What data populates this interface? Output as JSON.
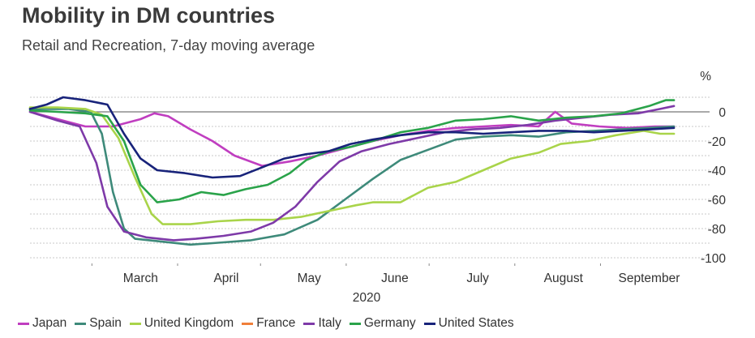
{
  "title": "Mobility in DM countries",
  "subtitle": "Retail and Recreation, 7-day moving average",
  "chart_data": {
    "type": "line",
    "title": "Mobility in DM countries",
    "subtitle": "Retail and Recreation, 7-day moving average",
    "ylabel": "%",
    "xlabel": "2020",
    "ylim": [
      -100,
      10
    ],
    "yticks": [
      0,
      -20,
      -40,
      -60,
      -80,
      -100
    ],
    "xlim": [
      0,
      240
    ],
    "months": [
      {
        "label": "March",
        "pos": 40
      },
      {
        "label": "April",
        "pos": 71
      },
      {
        "label": "May",
        "pos": 101
      },
      {
        "label": "June",
        "pos": 132
      },
      {
        "label": "July",
        "pos": 162
      },
      {
        "label": "August",
        "pos": 193
      },
      {
        "label": "September",
        "pos": 224
      }
    ],
    "year_label": "2020",
    "series": [
      {
        "name": "Japan",
        "color": "#c03ec0",
        "points": [
          [
            0,
            0
          ],
          [
            10,
            -5
          ],
          [
            20,
            -10
          ],
          [
            30,
            -10
          ],
          [
            40,
            -5
          ],
          [
            45,
            -1
          ],
          [
            50,
            -3
          ],
          [
            58,
            -12
          ],
          [
            66,
            -20
          ],
          [
            74,
            -30
          ],
          [
            84,
            -37
          ],
          [
            94,
            -34
          ],
          [
            104,
            -30
          ],
          [
            114,
            -25
          ],
          [
            124,
            -20
          ],
          [
            134,
            -16
          ],
          [
            144,
            -13
          ],
          [
            154,
            -11
          ],
          [
            164,
            -10
          ],
          [
            174,
            -9
          ],
          [
            184,
            -10
          ],
          [
            190,
            0
          ],
          [
            196,
            -8
          ],
          [
            206,
            -10
          ],
          [
            216,
            -11
          ],
          [
            226,
            -10
          ],
          [
            233,
            -10
          ]
        ]
      },
      {
        "name": "Spain",
        "color": "#3e8a7a",
        "points": [
          [
            0,
            2
          ],
          [
            14,
            2
          ],
          [
            22,
            0
          ],
          [
            26,
            -15
          ],
          [
            30,
            -55
          ],
          [
            34,
            -80
          ],
          [
            38,
            -87
          ],
          [
            48,
            -89
          ],
          [
            58,
            -91
          ],
          [
            66,
            -90
          ],
          [
            80,
            -88
          ],
          [
            92,
            -84
          ],
          [
            104,
            -74
          ],
          [
            114,
            -60
          ],
          [
            124,
            -46
          ],
          [
            134,
            -33
          ],
          [
            144,
            -26
          ],
          [
            154,
            -19
          ],
          [
            164,
            -17
          ],
          [
            174,
            -16
          ],
          [
            184,
            -17
          ],
          [
            194,
            -14
          ],
          [
            204,
            -13
          ],
          [
            214,
            -12
          ],
          [
            224,
            -11
          ],
          [
            233,
            -10
          ]
        ]
      },
      {
        "name": "United Kingdom",
        "color": "#a9d44a",
        "points": [
          [
            0,
            3
          ],
          [
            10,
            3
          ],
          [
            20,
            2
          ],
          [
            26,
            -2
          ],
          [
            32,
            -18
          ],
          [
            38,
            -45
          ],
          [
            44,
            -70
          ],
          [
            48,
            -77
          ],
          [
            58,
            -77
          ],
          [
            68,
            -75
          ],
          [
            78,
            -74
          ],
          [
            88,
            -74
          ],
          [
            98,
            -72
          ],
          [
            108,
            -68
          ],
          [
            118,
            -64
          ],
          [
            124,
            -62
          ],
          [
            134,
            -62
          ],
          [
            144,
            -52
          ],
          [
            154,
            -48
          ],
          [
            164,
            -40
          ],
          [
            174,
            -32
          ],
          [
            184,
            -28
          ],
          [
            192,
            -22
          ],
          [
            202,
            -20
          ],
          [
            212,
            -16
          ],
          [
            222,
            -13
          ],
          [
            228,
            -15
          ],
          [
            233,
            -15
          ]
        ]
      },
      {
        "name": "France",
        "color": "#f07f3a",
        "points": []
      },
      {
        "name": "Italy",
        "color": "#7e3aa8",
        "points": [
          [
            0,
            0
          ],
          [
            10,
            -6
          ],
          [
            18,
            -10
          ],
          [
            24,
            -35
          ],
          [
            28,
            -65
          ],
          [
            34,
            -82
          ],
          [
            42,
            -86
          ],
          [
            52,
            -88
          ],
          [
            60,
            -87
          ],
          [
            70,
            -85
          ],
          [
            80,
            -82
          ],
          [
            88,
            -76
          ],
          [
            96,
            -65
          ],
          [
            104,
            -48
          ],
          [
            112,
            -34
          ],
          [
            120,
            -27
          ],
          [
            130,
            -22
          ],
          [
            140,
            -18
          ],
          [
            150,
            -14
          ],
          [
            160,
            -12
          ],
          [
            170,
            -11
          ],
          [
            180,
            -9
          ],
          [
            190,
            -6
          ],
          [
            200,
            -4
          ],
          [
            210,
            -2
          ],
          [
            220,
            -1
          ],
          [
            228,
            2
          ],
          [
            233,
            4
          ]
        ]
      },
      {
        "name": "Germany",
        "color": "#2aa34a",
        "points": [
          [
            0,
            1
          ],
          [
            10,
            0
          ],
          [
            20,
            -1
          ],
          [
            28,
            -3
          ],
          [
            34,
            -20
          ],
          [
            40,
            -50
          ],
          [
            46,
            -62
          ],
          [
            54,
            -60
          ],
          [
            62,
            -55
          ],
          [
            70,
            -57
          ],
          [
            78,
            -53
          ],
          [
            86,
            -50
          ],
          [
            94,
            -42
          ],
          [
            100,
            -33
          ],
          [
            108,
            -27
          ],
          [
            116,
            -24
          ],
          [
            124,
            -20
          ],
          [
            134,
            -14
          ],
          [
            144,
            -11
          ],
          [
            154,
            -6
          ],
          [
            164,
            -5
          ],
          [
            174,
            -3
          ],
          [
            184,
            -6
          ],
          [
            194,
            -4
          ],
          [
            204,
            -3
          ],
          [
            214,
            -1
          ],
          [
            224,
            4
          ],
          [
            230,
            8
          ],
          [
            233,
            8
          ]
        ]
      },
      {
        "name": "United States",
        "color": "#18237a",
        "points": [
          [
            0,
            2
          ],
          [
            6,
            5
          ],
          [
            12,
            10
          ],
          [
            20,
            8
          ],
          [
            28,
            5
          ],
          [
            34,
            -15
          ],
          [
            40,
            -32
          ],
          [
            46,
            -40
          ],
          [
            56,
            -42
          ],
          [
            66,
            -45
          ],
          [
            76,
            -44
          ],
          [
            84,
            -38
          ],
          [
            92,
            -32
          ],
          [
            100,
            -29
          ],
          [
            108,
            -27
          ],
          [
            116,
            -22
          ],
          [
            124,
            -19
          ],
          [
            134,
            -16
          ],
          [
            144,
            -14
          ],
          [
            154,
            -14
          ],
          [
            164,
            -15
          ],
          [
            174,
            -14
          ],
          [
            184,
            -13
          ],
          [
            194,
            -13
          ],
          [
            204,
            -14
          ],
          [
            214,
            -13
          ],
          [
            224,
            -12
          ],
          [
            233,
            -11
          ]
        ]
      }
    ],
    "legend_position": "bottom",
    "grid": true
  }
}
